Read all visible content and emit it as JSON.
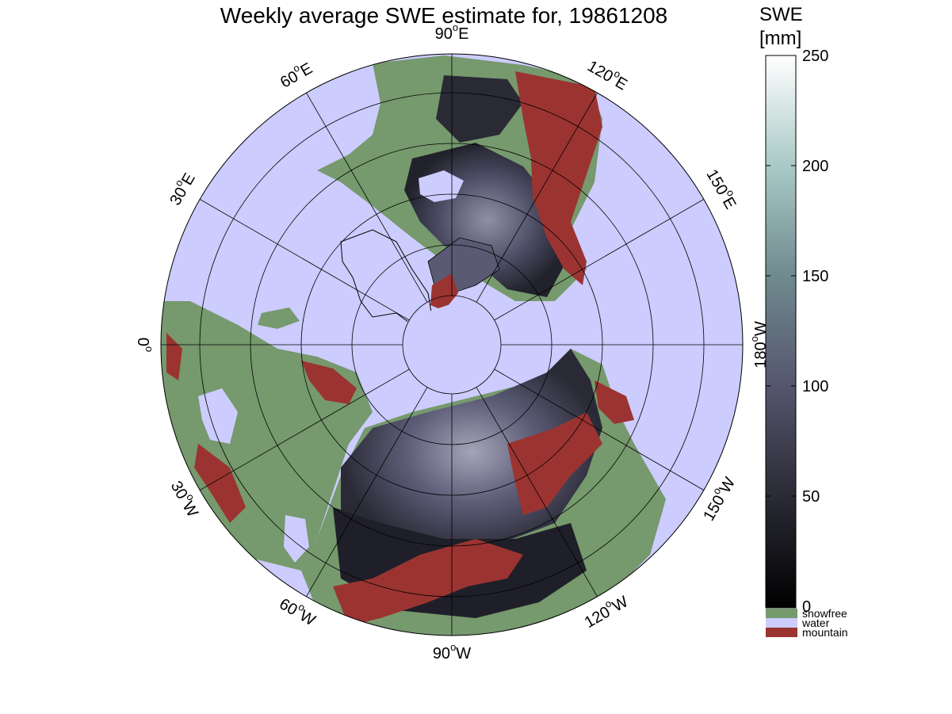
{
  "title": "Weekly average SWE estimate for, 19861208",
  "colorbar": {
    "label_line1": "SWE",
    "label_line2": "[mm]",
    "ticks": [
      0,
      50,
      100,
      150,
      200,
      250
    ],
    "range": [
      0,
      250
    ],
    "categories": [
      {
        "name": "snowfree",
        "color": "#76996d"
      },
      {
        "name": "water",
        "color": "#ccccff"
      },
      {
        "name": "mountain",
        "color": "#9b3431"
      }
    ]
  },
  "map": {
    "projection": "north-polar-stereographic",
    "longitude_labels": [
      {
        "deg": 90,
        "text": "90",
        "hemi": "W"
      },
      {
        "deg": 120,
        "text": "120",
        "hemi": "W"
      },
      {
        "deg": 150,
        "text": "150",
        "hemi": "W"
      },
      {
        "deg": 180,
        "text": "180",
        "hemi": "W"
      },
      {
        "deg": 210,
        "text": "150",
        "hemi": "E"
      },
      {
        "deg": 240,
        "text": "120",
        "hemi": "E"
      },
      {
        "deg": 270,
        "text": "90",
        "hemi": "E"
      },
      {
        "deg": 300,
        "text": "60",
        "hemi": "E"
      },
      {
        "deg": 330,
        "text": "30",
        "hemi": "E"
      },
      {
        "deg": 0,
        "text": "0",
        "hemi": ""
      },
      {
        "deg": 30,
        "text": "30",
        "hemi": "W"
      },
      {
        "deg": 60,
        "text": "60",
        "hemi": "W"
      }
    ],
    "colors": {
      "water": "#ccccff",
      "snowfree": "#76996d",
      "mountain": "#9b3431",
      "snow_low": "#1a1a22",
      "snow_mid": "#4c4c66",
      "snow_high": "#9a9aae"
    }
  }
}
